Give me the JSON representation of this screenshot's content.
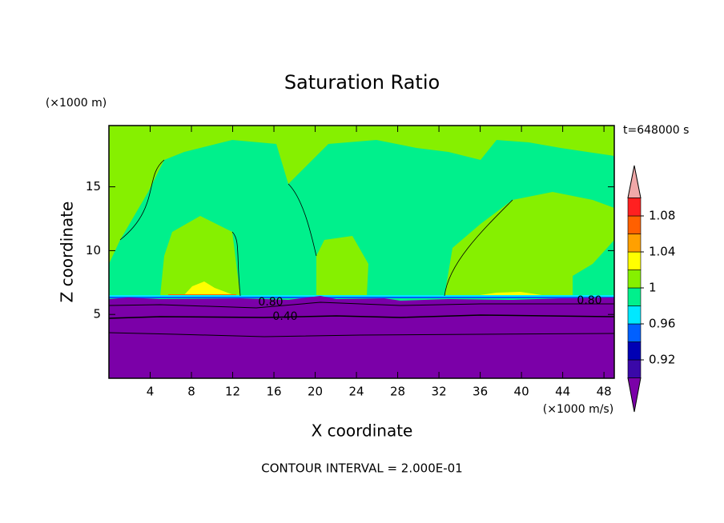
{
  "chart_data": {
    "type": "contour",
    "title": "Saturation Ratio",
    "xlabel": "X coordinate",
    "ylabel": "Z coordinate",
    "x_unit": "(×1000 m/s)",
    "y_unit": "(×1000 m)",
    "time_label": "t=648000 s",
    "footer": "CONTOUR INTERVAL = 2.000E-01",
    "xlim": [
      0,
      49
    ],
    "xticks": [
      4,
      8,
      12,
      16,
      20,
      24,
      28,
      32,
      36,
      40,
      44,
      48
    ],
    "ylim": [
      0,
      19.8
    ],
    "yticks": [
      5,
      10,
      15
    ],
    "levels": [
      0.9,
      0.92,
      0.94,
      0.96,
      0.98,
      1,
      1.02,
      1.04,
      1.06,
      1.08,
      1.1
    ],
    "colors": [
      "#7b00a8",
      "#3a08a8",
      "#0000b4",
      "#0060ff",
      "#00e8ff",
      "#00f08c",
      "#86f000",
      "#ffff00",
      "#ffa000",
      "#ff6000",
      "#ff2020",
      "#f0a8a8"
    ],
    "colorbar_ticks": [
      0.92,
      0.96,
      1,
      1.04,
      1.08
    ],
    "contour_labels": [
      {
        "value": 0.8,
        "label": "0.80"
      },
      {
        "value": 0.4,
        "label": "0.40"
      },
      {
        "value": 0.8,
        "label": "0.80"
      }
    ]
  }
}
